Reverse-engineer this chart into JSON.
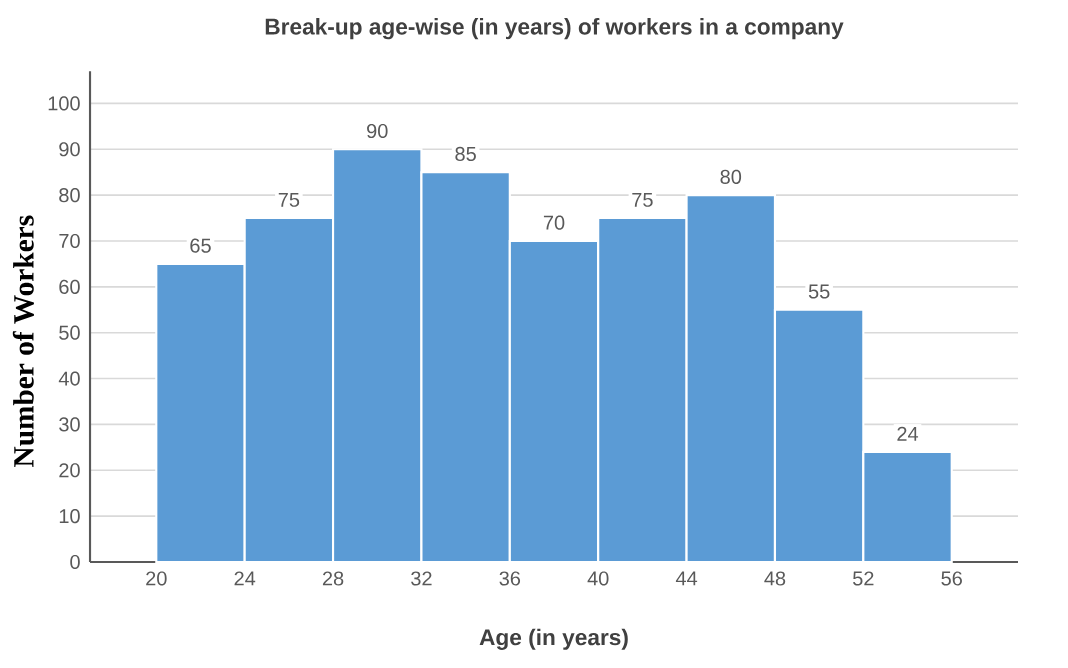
{
  "chart_data": {
    "type": "histogram",
    "title": "Break-up age-wise (in years) of workers in a company",
    "xlabel": "Age (in years)",
    "ylabel": "Number of Workers",
    "bins": [
      20,
      24,
      28,
      32,
      36,
      40,
      44,
      48,
      52,
      56
    ],
    "values": [
      65,
      75,
      90,
      85,
      70,
      75,
      80,
      55,
      24
    ],
    "color": "#5b9bd5",
    "xlim": [
      17,
      59
    ],
    "ylim": [
      0,
      107
    ],
    "xticks": [
      20,
      24,
      28,
      32,
      36,
      40,
      44,
      48,
      52,
      56
    ],
    "yticks": [
      0,
      10,
      20,
      30,
      40,
      50,
      60,
      70,
      80,
      90,
      100
    ],
    "grid": "y",
    "data_labels": true
  }
}
